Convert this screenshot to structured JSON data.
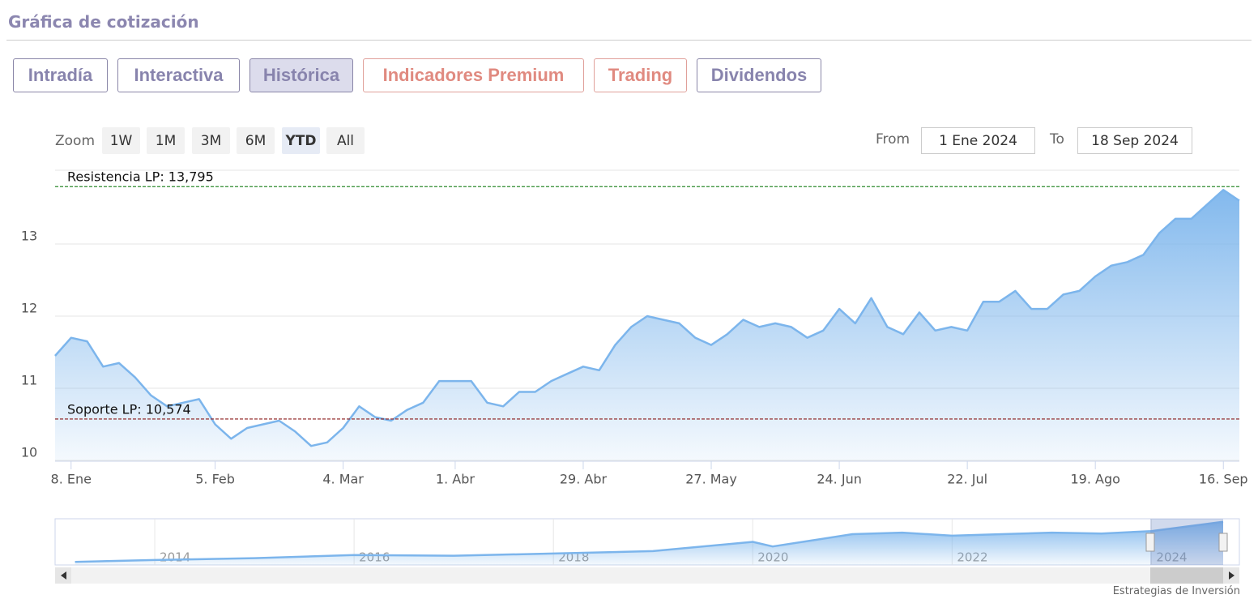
{
  "header": {
    "title": "Gráfica de cotización"
  },
  "tabs": [
    "Intradía",
    "Interactiva",
    "Histórica",
    "Indicadores Premium",
    "Trading",
    "Dividendos"
  ],
  "active_tab": 2,
  "zoom": {
    "label": "Zoom",
    "buttons": [
      "1W",
      "1M",
      "3M",
      "6M",
      "YTD",
      "All"
    ],
    "active": 4
  },
  "range": {
    "from_label": "From",
    "from": "1 Ene 2024",
    "to_label": "To",
    "to": "18 Sep 2024"
  },
  "chart_data": [
    {
      "type": "area",
      "color": "#7cb5ec",
      "grid": true,
      "categories": [
        null,
        "8. Ene",
        null,
        null,
        null,
        null,
        null,
        null,
        null,
        null,
        "5. Feb",
        null,
        null,
        null,
        null,
        null,
        null,
        null,
        "4. Mar",
        null,
        null,
        null,
        null,
        null,
        null,
        "1. Abr",
        null,
        null,
        null,
        null,
        null,
        null,
        null,
        "29. Abr",
        null,
        null,
        null,
        null,
        null,
        null,
        null,
        "27. May",
        null,
        null,
        null,
        null,
        null,
        null,
        null,
        "24. Jun",
        null,
        null,
        null,
        null,
        null,
        null,
        null,
        "22. Jul",
        null,
        null,
        null,
        null,
        null,
        null,
        null,
        "19. Ago",
        null,
        null,
        null,
        null,
        null,
        null,
        null,
        "16. Sep",
        null
      ],
      "values": [
        11.45,
        11.7,
        11.65,
        11.3,
        11.35,
        11.15,
        10.9,
        10.75,
        10.8,
        10.85,
        10.5,
        10.3,
        10.45,
        10.5,
        10.55,
        10.4,
        10.2,
        10.25,
        10.45,
        10.75,
        10.6,
        10.55,
        10.7,
        10.8,
        11.1,
        11.1,
        11.1,
        10.8,
        10.75,
        10.95,
        10.95,
        11.1,
        11.2,
        11.3,
        11.25,
        11.6,
        11.85,
        12.0,
        11.95,
        11.9,
        11.7,
        11.6,
        11.75,
        11.95,
        11.85,
        11.9,
        11.85,
        11.7,
        11.8,
        12.1,
        11.9,
        12.25,
        11.85,
        11.75,
        12.05,
        11.8,
        11.85,
        11.8,
        12.2,
        12.2,
        12.35,
        12.1,
        12.1,
        12.3,
        12.35,
        12.55,
        12.7,
        12.75,
        12.85,
        13.15,
        13.35,
        13.35,
        13.55,
        13.75,
        13.6
      ],
      "ylim": [
        10,
        14
      ],
      "yticks": [
        10,
        11,
        12,
        13
      ],
      "annotations": [
        {
          "label": "Resistencia LP: 13,795",
          "value": 13.795,
          "color": "#2e8b2e"
        },
        {
          "label": "Soporte LP: 10,574",
          "value": 10.574,
          "color": "#8b1a1a"
        }
      ]
    },
    {
      "type": "area",
      "color": "#7cb5ec",
      "x": [
        2013.2,
        2014,
        2015,
        2016,
        2017,
        2018,
        2019,
        2020,
        2020.2,
        2020.6,
        2021,
        2021.5,
        2022,
        2022.5,
        2023,
        2023.5,
        2024,
        2024.72
      ],
      "values": [
        1,
        1.6,
        2.2,
        3.2,
        3.0,
        3.7,
        4.5,
        7.5,
        6,
        8,
        10,
        10.5,
        9.5,
        10,
        10.5,
        10.2,
        11,
        14
      ],
      "xlim": [
        2013,
        2024.72
      ],
      "xticks": [
        2014,
        2016,
        2018,
        2020,
        2022,
        2024
      ],
      "ylim": [
        0,
        15
      ]
    }
  ],
  "footer": {
    "credit": "Estrategias de Inversión"
  }
}
